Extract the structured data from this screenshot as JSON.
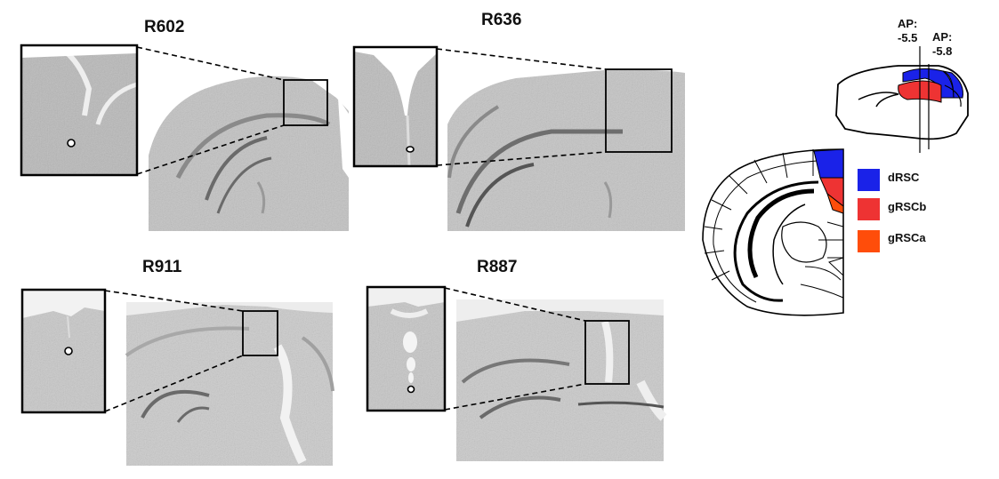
{
  "panels": [
    {
      "id": "R602"
    },
    {
      "id": "R636"
    },
    {
      "id": "R911"
    },
    {
      "id": "R887"
    }
  ],
  "ap_labels": {
    "first": "AP:\n-5.5",
    "second": "AP:\n-5.8"
  },
  "legend": [
    {
      "label": "dRSC",
      "color": "#1a22e8"
    },
    {
      "label": "gRSCb",
      "color": "#ee3333"
    },
    {
      "label": "gRSCa",
      "color": "#ff4d0a"
    }
  ],
  "tissue_color": "#bdbdbd"
}
